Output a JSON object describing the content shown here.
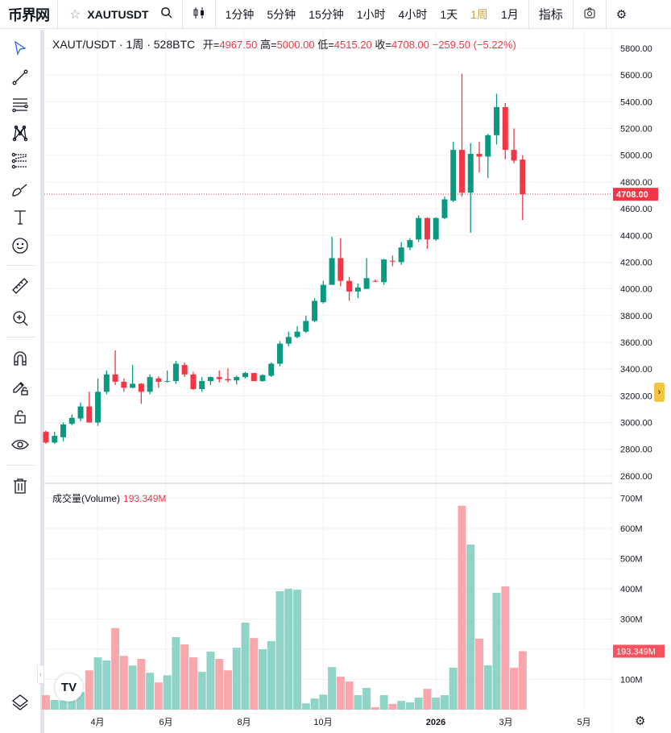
{
  "topbar": {
    "logo": "币界网",
    "symbol": "XAUTUSDT",
    "intervals": [
      "1分钟",
      "5分钟",
      "15分钟",
      "1小时",
      "4小时",
      "1天",
      "1周",
      "1月"
    ],
    "active_interval": "1周",
    "indicators_label": "指标"
  },
  "legend": {
    "title": "XAUT/USDT · 1周 · 528BTC",
    "open_label": "开=",
    "open": "4967.50",
    "high_label": "高=",
    "high": "5000.00",
    "low_label": "低=",
    "low": "4515.20",
    "close_label": "收=",
    "close": "4708.00",
    "change": "−259.50 (−5.22%)"
  },
  "volume_legend": {
    "label": "成交量(Volume)",
    "value": "193.349M"
  },
  "price_axis": {
    "labels": [
      "5800.00",
      "5600.00",
      "5400.00",
      "5200.00",
      "5000.00",
      "4800.00",
      "4600.00",
      "4400.00",
      "4200.00",
      "4000.00",
      "3800.00",
      "3600.00",
      "3400.00",
      "3200.00",
      "3000.00",
      "2800.00",
      "2600.00"
    ],
    "last_price": "4708.00"
  },
  "volume_axis": {
    "labels": [
      "700M",
      "600M",
      "500M",
      "400M",
      "300M",
      "200M",
      "100M"
    ],
    "last_volume": "193.349M"
  },
  "time_axis": {
    "labels": [
      "4月",
      "6月",
      "8月",
      "10月",
      "2026",
      "3月",
      "5月"
    ]
  },
  "colors": {
    "up": "#089981",
    "down": "#f23645",
    "up_vol": "#8fd4c7",
    "down_vol": "#f9a7ad",
    "active": "#c8a23b",
    "tool_active": "#2962ff"
  },
  "chart_data": {
    "type": "candlestick",
    "title": "XAUT/USDT 1周",
    "ylim": [
      2600,
      5800
    ],
    "volume_ylim_M": [
      0,
      700
    ],
    "candles": [
      [
        2930,
        2940,
        2840,
        2850
      ],
      [
        2850,
        2930,
        2840,
        2900
      ],
      [
        2890,
        3000,
        2860,
        2985
      ],
      [
        2990,
        3060,
        2980,
        3035
      ],
      [
        3030,
        3150,
        3010,
        3120
      ],
      [
        3120,
        3230,
        3000,
        3000
      ],
      [
        3000,
        3330,
        2975,
        3230
      ],
      [
        3230,
        3390,
        3210,
        3360
      ],
      [
        3360,
        3540,
        3280,
        3305
      ],
      [
        3305,
        3330,
        3230,
        3260
      ],
      [
        3260,
        3430,
        3255,
        3290
      ],
      [
        3290,
        3295,
        3140,
        3230
      ],
      [
        3230,
        3360,
        3210,
        3340
      ],
      [
        3330,
        3345,
        3260,
        3305
      ],
      [
        3305,
        3390,
        3300,
        3310
      ],
      [
        3310,
        3460,
        3290,
        3440
      ],
      [
        3430,
        3450,
        3340,
        3360
      ],
      [
        3360,
        3380,
        3245,
        3250
      ],
      [
        3250,
        3340,
        3230,
        3310
      ],
      [
        3310,
        3345,
        3280,
        3340
      ],
      [
        3340,
        3390,
        3300,
        3325
      ],
      [
        3325,
        3405,
        3300,
        3315
      ],
      [
        3315,
        3350,
        3285,
        3340
      ],
      [
        3340,
        3380,
        3330,
        3370
      ],
      [
        3370,
        3372,
        3308,
        3310
      ],
      [
        3310,
        3360,
        3305,
        3355
      ],
      [
        3350,
        3450,
        3340,
        3440
      ],
      [
        3440,
        3610,
        3420,
        3590
      ],
      [
        3590,
        3680,
        3570,
        3640
      ],
      [
        3640,
        3720,
        3630,
        3680
      ],
      [
        3680,
        3800,
        3670,
        3760
      ],
      [
        3760,
        3930,
        3750,
        3910
      ],
      [
        3900,
        4060,
        3890,
        4030
      ],
      [
        4030,
        4390,
        4030,
        4230
      ],
      [
        4230,
        4380,
        4020,
        4060
      ],
      [
        4060,
        4090,
        3910,
        3980
      ],
      [
        3980,
        4040,
        3930,
        4010
      ],
      [
        4000,
        4230,
        4000,
        4080
      ],
      [
        4060,
        4070,
        4050,
        4055
      ],
      [
        4050,
        4225,
        4030,
        4220
      ],
      [
        4210,
        4250,
        4170,
        4205
      ],
      [
        4200,
        4350,
        4180,
        4310
      ],
      [
        4310,
        4380,
        4290,
        4365
      ],
      [
        4370,
        4550,
        4350,
        4530
      ],
      [
        4530,
        4535,
        4300,
        4370
      ],
      [
        4370,
        4535,
        4360,
        4530
      ],
      [
        4530,
        4690,
        4520,
        4670
      ],
      [
        4660,
        5100,
        4650,
        5040
      ],
      [
        5040,
        5610,
        4690,
        4720
      ],
      [
        4720,
        5090,
        4420,
        5010
      ],
      [
        5010,
        5100,
        4870,
        4990
      ],
      [
        4990,
        5160,
        4830,
        5150
      ],
      [
        5150,
        5460,
        5080,
        5360
      ],
      [
        5360,
        5390,
        4970,
        5040
      ],
      [
        5040,
        5200,
        4940,
        4960
      ],
      [
        4967.5,
        5000,
        4515.2,
        4708
      ]
    ],
    "volume_M": [
      48,
      32,
      30,
      35,
      58,
      130,
      173,
      163,
      270,
      178,
      146,
      168,
      122,
      90,
      114,
      240,
      216,
      173,
      125,
      192,
      168,
      130,
      205,
      288,
      237,
      200,
      227,
      392,
      400,
      397,
      21,
      37,
      50,
      141,
      109,
      93,
      48,
      72,
      8,
      48,
      19,
      29,
      24,
      40,
      69,
      40,
      48,
      139,
      675,
      547,
      235,
      147,
      387,
      408,
      139,
      193.349
    ]
  }
}
